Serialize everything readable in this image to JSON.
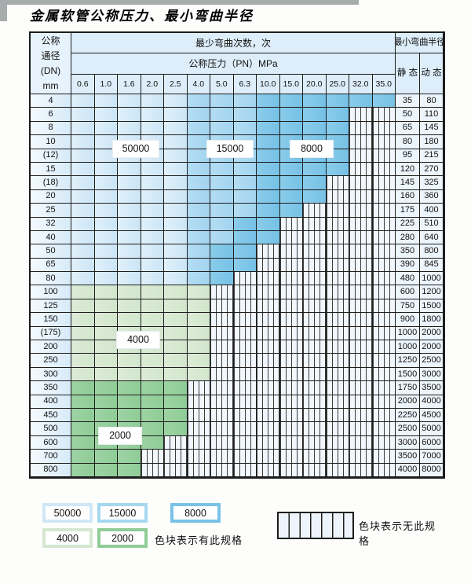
{
  "title": "金属软管公称压力、最小弯曲半径",
  "table": {
    "header": {
      "dn_label_lines": [
        "公称",
        "通径",
        "(DN)",
        "mm"
      ],
      "bend_cycles_label": "最少弯曲次数，次",
      "pressure_label": "公称压力（PN）MPa",
      "pressure_columns": [
        "0.6",
        "1.0",
        "1.6",
        "2.0",
        "2.5",
        "4.0",
        "5.0",
        "6.3",
        "10.0",
        "15.0",
        "20.0",
        "25.0",
        "32.0",
        "35.0"
      ],
      "radius_label": "最小弯曲半径",
      "static_label": "静 态",
      "dynamic_label": "动 态"
    },
    "cell_code_meaning": {
      "L": "50000次 色块",
      "M": "15000次 色块",
      "D": "8000次 色块",
      "G": "4000次 色块",
      "g": "2000次 色块",
      "H": "无此规格"
    },
    "rows": [
      {
        "dn": "4",
        "cells": "LLLLLMMMDDDDDD",
        "static": "35",
        "dynamic": "80"
      },
      {
        "dn": "6",
        "cells": "LLLLLMMMDDDDHH",
        "static": "50",
        "dynamic": "110"
      },
      {
        "dn": "8",
        "cells": "LLLLLMMMDDDDHH",
        "static": "65",
        "dynamic": "145"
      },
      {
        "dn": "10",
        "cells": "LLLLLMMMDDDDHH",
        "static": "80",
        "dynamic": "180"
      },
      {
        "dn": "(12)",
        "cells": "LLLLLMMMDDDDHH",
        "static": "95",
        "dynamic": "215"
      },
      {
        "dn": "15",
        "cells": "LLLLLMMMDDDDHH",
        "static": "120",
        "dynamic": "270"
      },
      {
        "dn": "(18)",
        "cells": "LLLLLMMMDDDHHH",
        "static": "145",
        "dynamic": "325"
      },
      {
        "dn": "20",
        "cells": "LLLLLMMMDDDHHH",
        "static": "160",
        "dynamic": "360"
      },
      {
        "dn": "25",
        "cells": "LLLLLMMMDDHHHH",
        "static": "175",
        "dynamic": "400"
      },
      {
        "dn": "32",
        "cells": "LLLLLMMDDHHHHH",
        "static": "225",
        "dynamic": "510"
      },
      {
        "dn": "40",
        "cells": "LLLLLMMDDHHHHH",
        "static": "280",
        "dynamic": "640"
      },
      {
        "dn": "50",
        "cells": "LLLLLMDDHHHHHH",
        "static": "350",
        "dynamic": "800"
      },
      {
        "dn": "65",
        "cells": "LLLLLMDDHHHHHH",
        "static": "390",
        "dynamic": "845"
      },
      {
        "dn": "80",
        "cells": "LLLLLMDHHHHHHH",
        "static": "480",
        "dynamic": "1000"
      },
      {
        "dn": "100",
        "cells": "GGGGGGHHHHHHHH",
        "static": "600",
        "dynamic": "1200"
      },
      {
        "dn": "125",
        "cells": "GGGGGGHHHHHHHH",
        "static": "750",
        "dynamic": "1500"
      },
      {
        "dn": "150",
        "cells": "GGGGGGHHHHHHHH",
        "static": "900",
        "dynamic": "1800"
      },
      {
        "dn": "(175)",
        "cells": "GGGGGGHHHHHHHH",
        "static": "1000",
        "dynamic": "2000"
      },
      {
        "dn": "200",
        "cells": "GGGGGGHHHHHHHH",
        "static": "1000",
        "dynamic": "2000"
      },
      {
        "dn": "250",
        "cells": "GGGGGGHHHHHHHH",
        "static": "1250",
        "dynamic": "2500"
      },
      {
        "dn": "300",
        "cells": "GGGGGGHHHHHHHH",
        "static": "1500",
        "dynamic": "3000"
      },
      {
        "dn": "350",
        "cells": "gggggHHHHHHHHH",
        "static": "1750",
        "dynamic": "3500"
      },
      {
        "dn": "400",
        "cells": "gggggHHHHHHHHH",
        "static": "2000",
        "dynamic": "4000"
      },
      {
        "dn": "450",
        "cells": "gggggHHHHHHHHH",
        "static": "2250",
        "dynamic": "4500"
      },
      {
        "dn": "500",
        "cells": "gggggHHHHHHHHH",
        "static": "2500",
        "dynamic": "5000"
      },
      {
        "dn": "600",
        "cells": "ggggHHHHHHHHHH",
        "static": "3000",
        "dynamic": "6000"
      },
      {
        "dn": "700",
        "cells": "gggHHHHHHHHHHH",
        "static": "3500",
        "dynamic": "7000"
      },
      {
        "dn": "800",
        "cells": "gggHHHHHHHHHHH",
        "static": "4000",
        "dynamic": "8000"
      }
    ]
  },
  "cycle_labels": {
    "l50000": "50000",
    "l15000": "15000",
    "l8000": "8000",
    "l4000": "4000",
    "l2000": "2000"
  },
  "legend": {
    "items": [
      {
        "label": "50000",
        "color": "#cfe7f7"
      },
      {
        "label": "15000",
        "color": "#a6d7f0"
      },
      {
        "label": "8000",
        "color": "#79c2e7"
      },
      {
        "label": "4000",
        "color": "#d4e7cf"
      },
      {
        "label": "2000",
        "color": "#8fcc97"
      }
    ],
    "has_spec_text": "色块表示有此规格",
    "no_spec_text": "色块表示无此规格"
  },
  "colors": {
    "cycles_50000": "#cbe5f6",
    "cycles_15000": "#a2d4ef",
    "cycles_8000": "#76c1e6",
    "cycles_4000": "#d2e6cd",
    "cycles_2000": "#8fcc97",
    "header_bg": "#ddeefa",
    "border": "#1d1d1d"
  }
}
